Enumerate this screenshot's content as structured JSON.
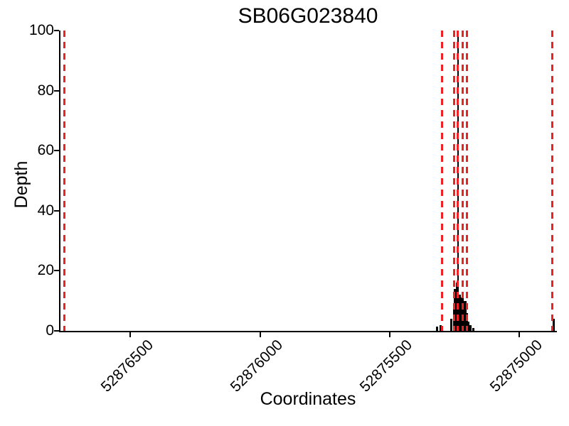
{
  "chart_data": {
    "type": "bar",
    "title": "SB06G023840",
    "xlabel": "Coordinates",
    "ylabel": "Depth",
    "xlim": [
      52876770,
      52874860
    ],
    "x_axis_reversed": true,
    "ylim": [
      0,
      100
    ],
    "x_ticks": [
      52876500,
      52876000,
      52875500,
      52875000
    ],
    "y_ticks": [
      0,
      20,
      40,
      60,
      80,
      100
    ],
    "grid": false,
    "legend": "none",
    "bar_color": "#000000",
    "vline_color": "#EE2222",
    "vline_style": "dashed",
    "vlines": [
      52876755,
      52875298,
      52875251,
      52875237,
      52875219,
      52875202,
      52874871
    ],
    "depth_profile": [
      {
        "x": 52875317,
        "y": 1.5
      },
      {
        "x": 52875302,
        "y": 2
      },
      {
        "x": 52875261,
        "y": 4
      },
      {
        "x": 52875252,
        "y": 8
      },
      {
        "x": 52875247,
        "y": 14
      },
      {
        "x": 52875241,
        "y": 16
      },
      {
        "x": 52875237,
        "y": 100
      },
      {
        "x": 52875236,
        "y": 13
      },
      {
        "x": 52875230,
        "y": 12
      },
      {
        "x": 52875225,
        "y": 11
      },
      {
        "x": 52875219,
        "y": 11
      },
      {
        "x": 52875214,
        "y": 10
      },
      {
        "x": 52875208,
        "y": 10
      },
      {
        "x": 52875203,
        "y": 6
      },
      {
        "x": 52875197,
        "y": 3
      },
      {
        "x": 52875189,
        "y": 2
      },
      {
        "x": 52875178,
        "y": 1
      },
      {
        "x": 52874868,
        "y": 4
      }
    ]
  }
}
